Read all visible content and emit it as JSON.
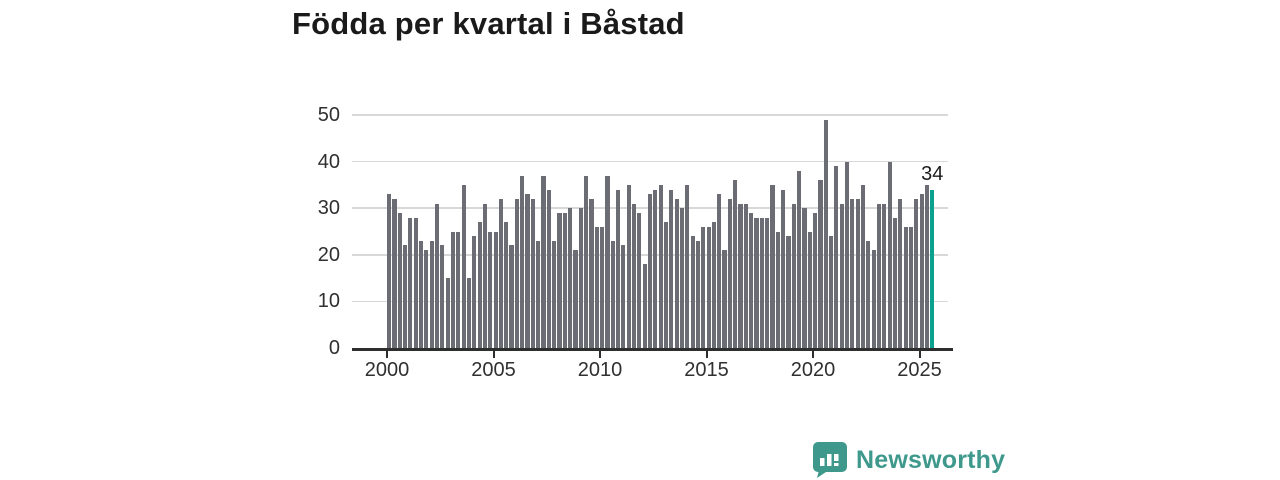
{
  "title": "Födda per kvartal i Båstad",
  "brand": {
    "name": "Newsworthy",
    "color": "#3E998C",
    "icon": "newsworthy-speech-bubble-bar-chart"
  },
  "colors": {
    "bar": "#6C6C74",
    "highlight": "#0BA18E",
    "grid": "#D8D8D8",
    "axis": "#2E2E2E",
    "tick_text": "#303030",
    "title_text": "#1A1A1A"
  },
  "chart_data": {
    "type": "bar",
    "title": "Födda per kvartal i Båstad",
    "x_period": "quarterly",
    "x_start": "2000-Q1",
    "x_end": "2025-Q3",
    "x_tick_labels": [
      "2000",
      "2005",
      "2010",
      "2015",
      "2020",
      "2025"
    ],
    "y_ticks": [
      0,
      10,
      20,
      30,
      40,
      50
    ],
    "ylim": [
      0,
      50
    ],
    "grid": true,
    "legend": false,
    "values": [
      33,
      32,
      29,
      22,
      28,
      28,
      23,
      21,
      23,
      31,
      22,
      15,
      25,
      25,
      35,
      15,
      24,
      27,
      31,
      25,
      25,
      32,
      27,
      22,
      32,
      37,
      33,
      32,
      23,
      37,
      34,
      23,
      29,
      29,
      30,
      21,
      30,
      37,
      32,
      26,
      26,
      37,
      23,
      34,
      22,
      35,
      31,
      29,
      18,
      33,
      34,
      35,
      27,
      34,
      32,
      30,
      35,
      24,
      23,
      26,
      26,
      27,
      33,
      21,
      32,
      36,
      31,
      31,
      29,
      28,
      28,
      28,
      35,
      25,
      34,
      24,
      31,
      38,
      30,
      25,
      29,
      36,
      49,
      24,
      39,
      31,
      40,
      32,
      32,
      35,
      23,
      21,
      31,
      31,
      40,
      28,
      32,
      26,
      26,
      32,
      33,
      35,
      34
    ],
    "highlight": {
      "index": 102,
      "period": "2025-Q3",
      "value": 34,
      "label": "34"
    }
  }
}
